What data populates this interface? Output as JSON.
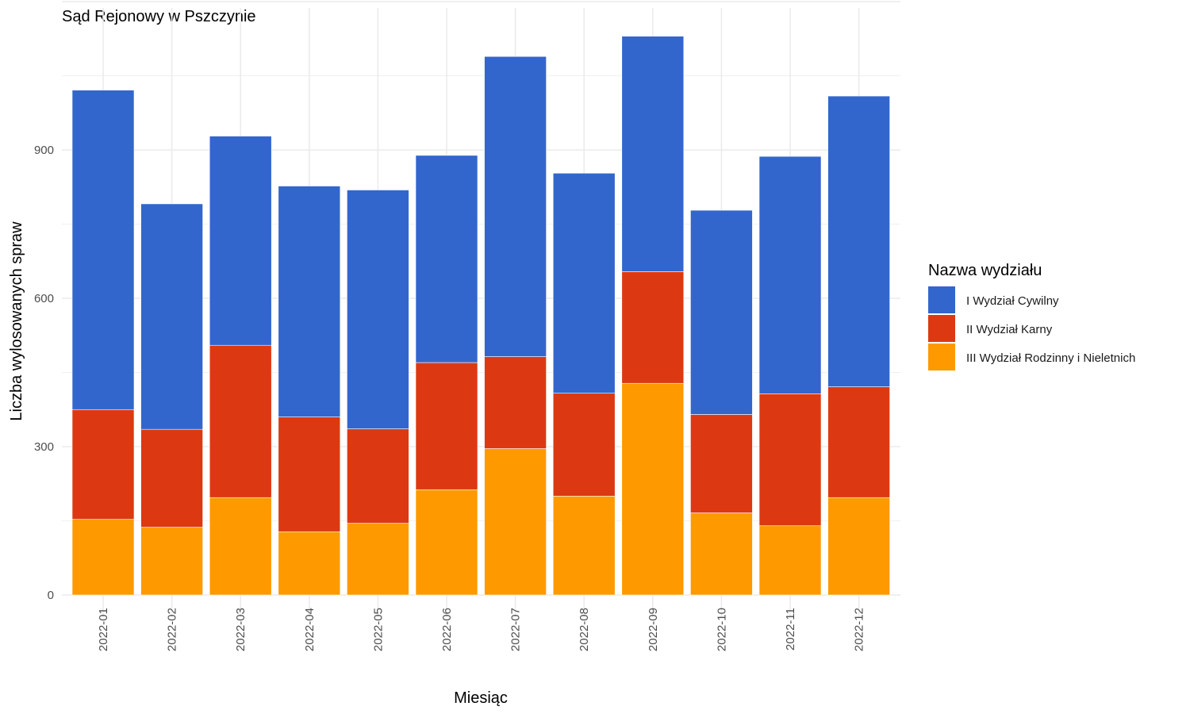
{
  "chart_data": {
    "type": "bar",
    "stacked": true,
    "title": "Sąd Rejonowy w Pszczynie",
    "xlabel": "Miesiąc",
    "ylabel": "Liczba wylosowanych spraw",
    "ylim": [
      0,
      1200
    ],
    "yticks": [
      0,
      300,
      600,
      900
    ],
    "grid": true,
    "legend": {
      "title": "Nazwa wydziału",
      "placement": "right"
    },
    "categories": [
      "2022-01",
      "2022-02",
      "2022-03",
      "2022-04",
      "2022-05",
      "2022-06",
      "2022-07",
      "2022-08",
      "2022-09",
      "2022-10",
      "2022-11",
      "2022-12"
    ],
    "series": [
      {
        "name": "III Wydział Rodzinny i Nieletnich",
        "color": "#FF9900",
        "values": [
          153,
          137,
          197,
          128,
          145,
          213,
          296,
          200,
          428,
          166,
          140,
          197
        ]
      },
      {
        "name": "II Wydział Karny",
        "color": "#DC3912",
        "values": [
          222,
          198,
          308,
          232,
          191,
          257,
          186,
          208,
          226,
          199,
          267,
          224
        ]
      },
      {
        "name": "I Wydział Cywilny",
        "color": "#3366CC",
        "values": [
          646,
          456,
          423,
          467,
          483,
          419,
          607,
          445,
          476,
          413,
          480,
          588
        ]
      }
    ],
    "legend_order": [
      "I Wydział Cywilny",
      "II Wydział Karny",
      "III Wydział Rodzinny i Nieletnich"
    ]
  }
}
